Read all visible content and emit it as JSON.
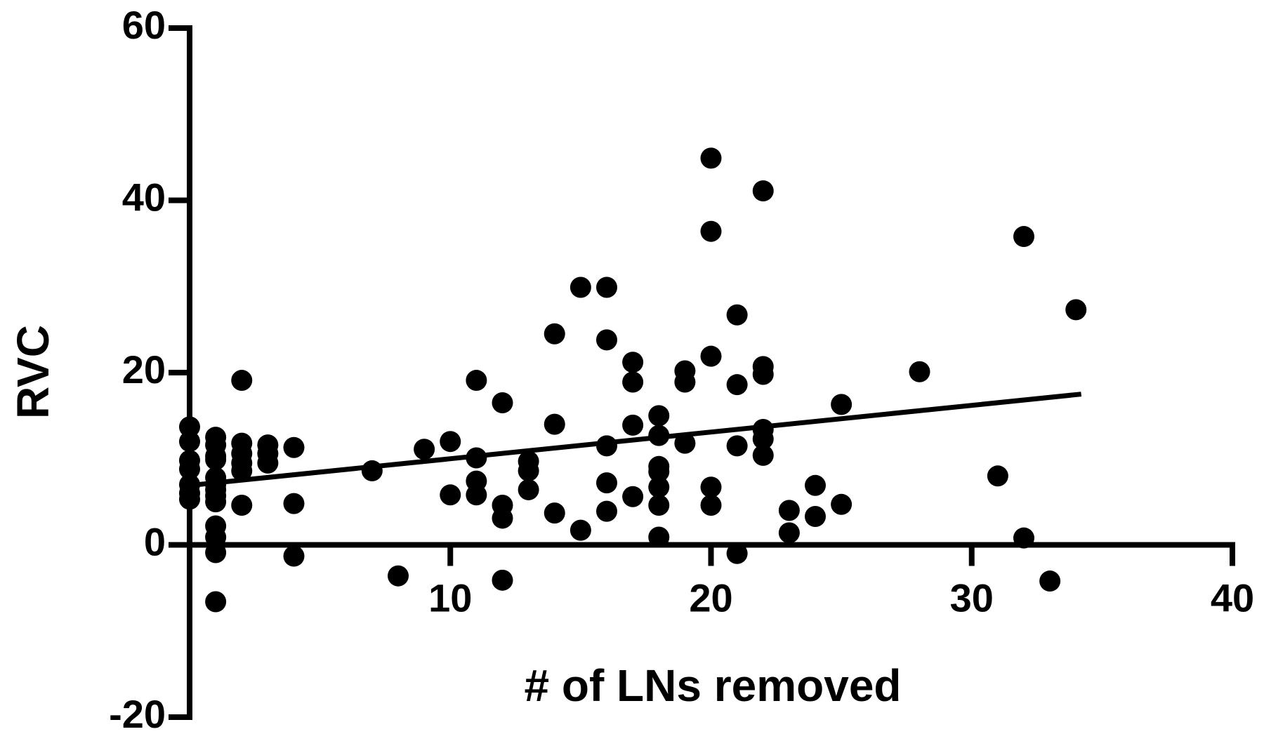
{
  "chart_data": {
    "type": "scatter",
    "x_label": "# of LNs removed",
    "y_label": "RVC",
    "x": [
      0,
      0,
      0,
      0,
      0,
      0,
      0,
      1,
      1,
      1,
      1,
      1,
      1,
      1,
      1,
      1,
      1,
      1,
      1,
      1,
      2,
      2,
      2,
      2,
      2,
      2,
      3,
      3,
      3,
      4,
      4,
      4,
      7,
      8,
      9,
      10,
      10,
      11,
      11,
      11,
      11,
      12,
      12,
      12,
      12,
      13,
      13,
      13,
      14,
      14,
      14,
      15,
      15,
      16,
      16,
      16,
      16,
      16,
      17,
      17,
      17,
      17,
      18,
      18,
      18,
      18,
      18,
      18,
      18,
      19,
      19,
      19,
      20,
      20,
      20,
      20,
      20,
      21,
      21,
      21,
      21,
      22,
      22,
      22,
      22,
      22,
      22,
      23,
      23,
      24,
      24,
      25,
      25,
      28,
      31,
      32,
      32,
      33,
      34
    ],
    "values": [
      13.7,
      12,
      9.8,
      8.8,
      7,
      6,
      5.3,
      12.5,
      11.6,
      10.3,
      9.9,
      7.8,
      7,
      6.4,
      5.7,
      5,
      2.2,
      0.9,
      -0.9,
      -6.6,
      19.1,
      11.8,
      10.6,
      9.5,
      8.6,
      4.6,
      11.6,
      10.6,
      9.5,
      11.3,
      4.8,
      -1.3,
      8.6,
      -3.6,
      11.1,
      12,
      5.8,
      19.1,
      10.1,
      7.4,
      5.8,
      16.5,
      4.6,
      3.1,
      -4.1,
      9.7,
      8.6,
      6.4,
      24.5,
      14,
      3.7,
      29.9,
      1.7,
      29.9,
      23.8,
      11.5,
      7.2,
      3.9,
      21.2,
      18.9,
      13.9,
      5.6,
      15,
      12.7,
      9.1,
      8.5,
      6.7,
      4.6,
      0.9,
      20.2,
      18.9,
      11.8,
      44.9,
      36.4,
      21.9,
      6.7,
      4.6,
      26.7,
      18.6,
      11.5,
      -1,
      41.1,
      20.7,
      19.8,
      13.4,
      12.3,
      10.4,
      4,
      1.4,
      6.9,
      3.3,
      16.3,
      4.7,
      20.1,
      8,
      35.8,
      0.8,
      -4.2,
      27.3
    ],
    "fit": {
      "x": [
        0,
        34.2
      ],
      "y": [
        6.9,
        17.5
      ]
    },
    "color": "#000000",
    "xlim": [
      0,
      40
    ],
    "xticks": [
      10,
      20,
      30,
      40
    ],
    "ylim": [
      -20,
      60
    ],
    "yticks": [
      -20,
      0,
      20,
      40,
      60
    ]
  }
}
